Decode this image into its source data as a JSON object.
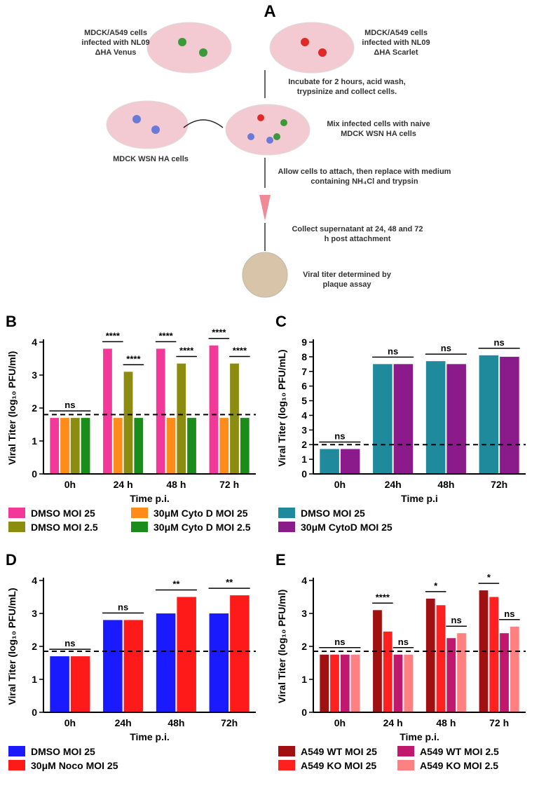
{
  "panel_a": {
    "label": "A",
    "texts": [
      "MDCK/A549 cells infected with NL09 ΔHA Venus",
      "MDCK/A549 cells infected with NL09 ΔHA Scarlet",
      "Incubate for 2 hours, acid wash, trypsinize and collect cells.",
      "MDCK WSN HA cells",
      "Mix infected cells with naive MDCK WSN HA cells",
      "Allow cells to attach, then replace with medium containing NH₄Cl and trypsin",
      "Collect supernatant at 24, 48 and 72 h post attachment",
      "Viral titer determined by plaque assay"
    ]
  },
  "chart_data": [
    {
      "type": "bar",
      "panel": "B",
      "y_label": "Viral Titer (log₁₀ PFU/ml)",
      "x_label": "Time p.i.",
      "categories": [
        "0h",
        "24 h",
        "48 h",
        "72 h"
      ],
      "series": [
        {
          "name": "DMSO MOI 25",
          "color": "#f2399a",
          "values": [
            1.7,
            3.8,
            3.8,
            3.9
          ]
        },
        {
          "name": "30μM Cyto D MOI 25",
          "color": "#ff8c1a",
          "values": [
            1.7,
            1.7,
            1.7,
            1.7
          ]
        },
        {
          "name": "DMSO MOI 2.5",
          "color": "#8c8c10",
          "values": [
            1.7,
            3.1,
            3.35,
            3.35
          ]
        },
        {
          "name": "30μM Cyto D MOI 2.5",
          "color": "#1a8c1a",
          "values": [
            1.7,
            1.7,
            1.7,
            1.7
          ]
        }
      ],
      "ylim": [
        0,
        4
      ],
      "yticks": [
        0,
        1,
        2,
        3,
        4
      ],
      "threshold": 1.8,
      "annotations": [
        {
          "label": "ns",
          "category": 0,
          "series": [
            0,
            3
          ]
        },
        {
          "label": "****",
          "category": 1,
          "series": [
            0,
            1
          ]
        },
        {
          "label": "****",
          "category": 1,
          "series": [
            2,
            3
          ]
        },
        {
          "label": "****",
          "category": 2,
          "series": [
            0,
            1
          ]
        },
        {
          "label": "****",
          "category": 2,
          "series": [
            2,
            3
          ]
        },
        {
          "label": "****",
          "category": 3,
          "series": [
            0,
            1
          ]
        },
        {
          "label": "****",
          "category": 3,
          "series": [
            2,
            3
          ]
        }
      ]
    },
    {
      "type": "bar",
      "panel": "C",
      "y_label": "Viral Titer (log₁₀ PFU/mL)",
      "x_label": "Time p.i",
      "categories": [
        "0h",
        "24h",
        "48h",
        "72h"
      ],
      "series": [
        {
          "name": "DMSO MOI 25",
          "color": "#1f8a9c",
          "values": [
            1.7,
            7.5,
            7.7,
            8.1
          ]
        },
        {
          "name": "30μM CytoD MOI 25",
          "color": "#8b1a8b",
          "values": [
            1.7,
            7.5,
            7.5,
            8.0
          ]
        }
      ],
      "ylim": [
        0,
        9
      ],
      "yticks": [
        0,
        1,
        2,
        3,
        4,
        5,
        6,
        7,
        8,
        9
      ],
      "threshold": 2,
      "annotations": [
        {
          "label": "ns",
          "category": 0,
          "series": [
            0,
            1
          ]
        },
        {
          "label": "ns",
          "category": 1,
          "series": [
            0,
            1
          ]
        },
        {
          "label": "ns",
          "category": 2,
          "series": [
            0,
            1
          ]
        },
        {
          "label": "ns",
          "category": 3,
          "series": [
            0,
            1
          ]
        }
      ]
    },
    {
      "type": "bar",
      "panel": "D",
      "y_label": "Viral Titer (log₁₀ PFU/mL)",
      "x_label": "Time p.i.",
      "categories": [
        "0h",
        "24h",
        "48h",
        "72h"
      ],
      "series": [
        {
          "name": "DMSO MOI 25",
          "color": "#1a1aff",
          "values": [
            1.7,
            2.8,
            3.0,
            3.0
          ]
        },
        {
          "name": "30μM Noco MOI 25",
          "color": "#ff1a1a",
          "values": [
            1.7,
            2.8,
            3.5,
            3.55
          ]
        }
      ],
      "ylim": [
        0,
        4
      ],
      "yticks": [
        0,
        1,
        2,
        3,
        4
      ],
      "threshold": 1.85,
      "annotations": [
        {
          "label": "ns",
          "category": 0,
          "series": [
            0,
            1
          ]
        },
        {
          "label": "ns",
          "category": 1,
          "series": [
            0,
            1
          ]
        },
        {
          "label": "**",
          "category": 2,
          "series": [
            0,
            1
          ]
        },
        {
          "label": "**",
          "category": 3,
          "series": [
            0,
            1
          ]
        }
      ]
    },
    {
      "type": "bar",
      "panel": "E",
      "y_label": "Viral Titer (log₁₀ PFU/ml)",
      "x_label": "Time p.i.",
      "categories": [
        "0h",
        "24 h",
        "48 h",
        "72 h"
      ],
      "series": [
        {
          "name": "A549 WT MOI 25",
          "color": "#a01010",
          "values": [
            1.75,
            3.1,
            3.45,
            3.7
          ]
        },
        {
          "name": "A549 KO MOI 25",
          "color": "#ff2020",
          "values": [
            1.75,
            2.45,
            3.25,
            3.5
          ]
        },
        {
          "name": "A549 WT MOI 2.5",
          "color": "#c0186c",
          "values": [
            1.75,
            1.75,
            2.25,
            2.4
          ]
        },
        {
          "name": "A549 KO MOI 2.5",
          "color": "#ff8080",
          "values": [
            1.75,
            1.75,
            2.4,
            2.6
          ]
        }
      ],
      "ylim": [
        0,
        4
      ],
      "yticks": [
        0,
        1,
        2,
        3,
        4
      ],
      "threshold": 1.85,
      "annotations": [
        {
          "label": "ns",
          "category": 0,
          "series": [
            0,
            3
          ]
        },
        {
          "label": "****",
          "category": 1,
          "series": [
            0,
            1
          ]
        },
        {
          "label": "ns",
          "category": 1,
          "series": [
            2,
            3
          ]
        },
        {
          "label": "*",
          "category": 2,
          "series": [
            0,
            1
          ]
        },
        {
          "label": "ns",
          "category": 2,
          "series": [
            2,
            3
          ]
        },
        {
          "label": "*",
          "category": 3,
          "series": [
            0,
            1
          ]
        },
        {
          "label": "ns",
          "category": 3,
          "series": [
            2,
            3
          ]
        }
      ]
    }
  ]
}
